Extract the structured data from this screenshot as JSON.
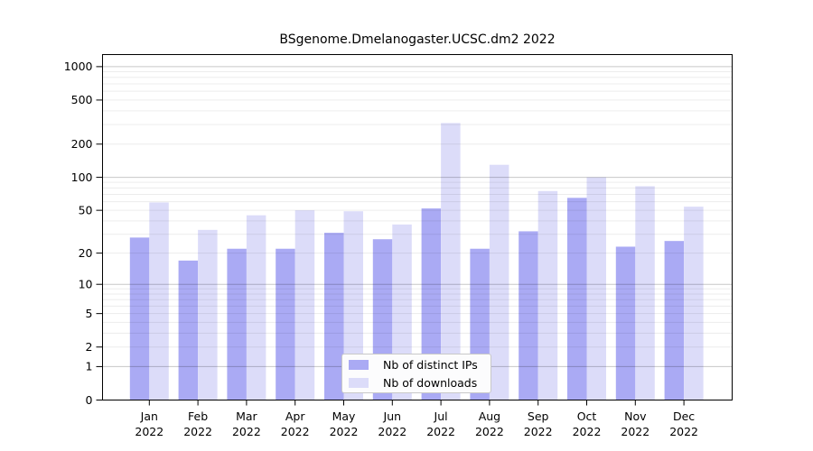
{
  "chart_data": {
    "type": "bar",
    "title": "BSgenome.Dmelanogaster.UCSC.dm2 2022",
    "scale": "log1p",
    "grid": true,
    "legend_position": "bottom-center",
    "categories": [
      "Jan",
      "Feb",
      "Mar",
      "Apr",
      "May",
      "Jun",
      "Jul",
      "Aug",
      "Sep",
      "Oct",
      "Nov",
      "Dec"
    ],
    "x_tick_year_line": "2022",
    "series": [
      {
        "name": "Nb of distinct IPs",
        "color": "#aaaaf4",
        "values": [
          28,
          17,
          22,
          22,
          31,
          27,
          52,
          22,
          32,
          65,
          23,
          26
        ]
      },
      {
        "name": "Nb of downloads",
        "color": "#dcdcf9",
        "values": [
          59,
          33,
          45,
          50,
          49,
          37,
          310,
          130,
          75,
          100,
          83,
          54
        ]
      }
    ],
    "y_ticks": [
      {
        "value": 0,
        "label": "0"
      },
      {
        "value": 1,
        "label": "1"
      },
      {
        "value": 2,
        "label": "2"
      },
      {
        "value": 5,
        "label": "5"
      },
      {
        "value": 10,
        "label": "10"
      },
      {
        "value": 20,
        "label": "20"
      },
      {
        "value": 50,
        "label": "50"
      },
      {
        "value": 100,
        "label": "100"
      },
      {
        "value": 200,
        "label": "200"
      },
      {
        "value": 500,
        "label": "500"
      },
      {
        "value": 1000,
        "label": "1000"
      }
    ],
    "ylim": [
      0,
      1300
    ]
  },
  "colors": {
    "background": "#ffffff",
    "bar_distinct_ips": "#aaaaf4",
    "bar_downloads": "#dcdcf9",
    "grid_minor": "rgba(0,0,0,0.075)",
    "grid_major": "rgba(0,0,0,0.22)",
    "axis": "#000000",
    "legend_border": "#c8c8c8",
    "legend_background": "#fcfcfd",
    "text": "#000000"
  }
}
